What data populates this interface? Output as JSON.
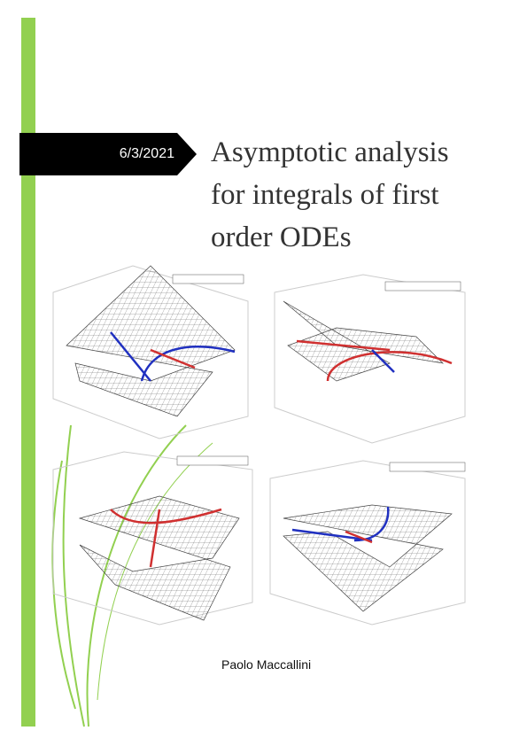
{
  "header": {
    "date": "6/3/2021",
    "title_lines": [
      "Asymptotic analysis",
      "for integrals of first",
      "order ODEs"
    ]
  },
  "author": "Paolo Maccallini"
}
